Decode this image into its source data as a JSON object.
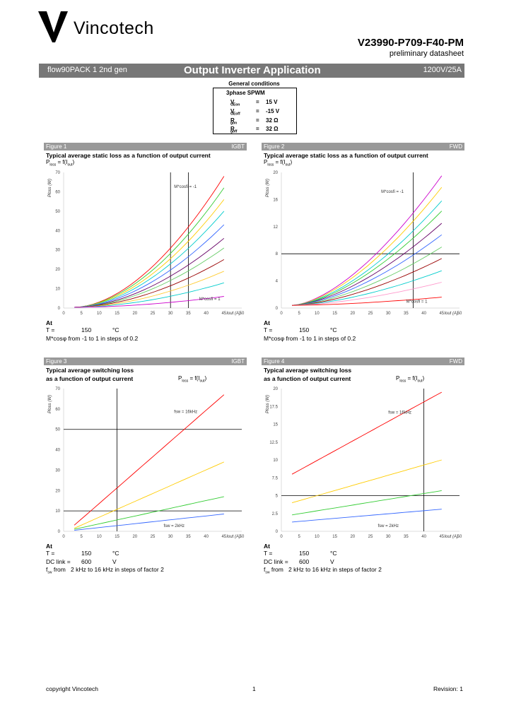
{
  "header": {
    "brand": "Vincotech",
    "part_number": "V23990-P709-F40-PM",
    "subtitle": "preliminary datasheet"
  },
  "band": {
    "left": "flow90PACK 1 2nd gen",
    "center": "Output Inverter Application",
    "right": "1200V/25A"
  },
  "general_conditions": {
    "title": "General conditions",
    "heading": "3phase SPWM",
    "rows": [
      {
        "sym": "V",
        "sub": "GEon",
        "eq": "=",
        "val": "15 V"
      },
      {
        "sym": "V",
        "sub": "GEoff",
        "eq": "=",
        "val": "-15 V"
      },
      {
        "sym": "R",
        "sub": "gon",
        "eq": "=",
        "val": "32 Ω"
      },
      {
        "sym": "R",
        "sub": "goff",
        "eq": "=",
        "val": "32 Ω"
      }
    ]
  },
  "figures": [
    {
      "label": "Figure 1",
      "tag": "IGBT",
      "title": "Typical average static loss as a function of output current",
      "title2": "",
      "formula": "P",
      "formula_sub": "loss",
      "formula_rest": " = f(I",
      "formula_sub2": "out",
      "formula_end": ")",
      "ylabel": "Ploss (W)",
      "xlabel": "Iout (A)",
      "annot_top": "M*cosfi = -1",
      "annot_bottom": "M*cosfi = 1",
      "cond_at": "At",
      "cond_t_label": "T =",
      "cond_t_val": "150",
      "cond_t_unit": "°C",
      "cond_note": "M*cosφ from -1 to 1 in steps of 0.2"
    },
    {
      "label": "Figure 2",
      "tag": "FWD",
      "title": "Typical average static loss as a function of output current",
      "title2": "",
      "formula": "P",
      "formula_sub": "loss",
      "formula_rest": " = f(I",
      "formula_sub2": "out",
      "formula_end": ")",
      "ylabel": "Ploss (W)",
      "xlabel": "Iout (A)",
      "annot_top": "M*cosfi = -1",
      "annot_bottom": "M*cosfi = 1",
      "cond_at": "At",
      "cond_t_label": "T =",
      "cond_t_val": "150",
      "cond_t_unit": "°C",
      "cond_note": "M*cosφ from -1 to 1 in steps of 0.2"
    },
    {
      "label": "Figure 3",
      "tag": "IGBT",
      "title": "Typical average switching loss",
      "title2": "as a function of output current",
      "formula": "P",
      "formula_sub": "loss",
      "formula_rest": " = f(I",
      "formula_sub2": "out",
      "formula_end": ")",
      "ylabel": "Ploss (W)",
      "xlabel": "Iout (A)",
      "annot_top": "fsw = 16kHz",
      "annot_bottom": "fsw = 2kHz",
      "cond_at": "At",
      "cond_t_label": "T =",
      "cond_t_val": "150",
      "cond_t_unit": "°C",
      "cond_dc_label": "DC link =",
      "cond_dc_val": "600",
      "cond_dc_unit": "V",
      "cond_f_label": "f",
      "cond_f_sub": "sw",
      "cond_f_rest": " from",
      "cond_f_val": "2 kHz to 16 kHz in steps of factor 2"
    },
    {
      "label": "Figure 4",
      "tag": "FWD",
      "title": "Typical average switching loss",
      "title2": "as a function of output current",
      "formula": "P",
      "formula_sub": "loss",
      "formula_rest": " = f(I",
      "formula_sub2": "out",
      "formula_end": ")",
      "ylabel": "Ploss (W)",
      "xlabel": "Iout (A)",
      "annot_top": "fsw = 16kHz",
      "annot_bottom": "fsw = 2kHz",
      "cond_at": "At",
      "cond_t_label": "T =",
      "cond_t_val": "150",
      "cond_t_unit": "°C",
      "cond_dc_label": "DC link =",
      "cond_dc_val": "600",
      "cond_dc_unit": "V",
      "cond_f_label": "f",
      "cond_f_sub": "sw",
      "cond_f_rest": " from",
      "cond_f_val": "2 kHz to 16 kHz in steps of factor 2"
    }
  ],
  "chart_data": [
    {
      "type": "line",
      "x_ticks": [
        0,
        5,
        10,
        15,
        20,
        25,
        30,
        35,
        40,
        45,
        50
      ],
      "y_ticks": [
        0,
        10,
        20,
        30,
        40,
        50,
        60,
        70
      ],
      "xlim": [
        0,
        50
      ],
      "ylim": [
        0,
        70
      ],
      "vlines": [
        30,
        35
      ],
      "hlines": [],
      "x_start": 3,
      "x_end": 45,
      "series": [
        {
          "color": "#ff0000",
          "end": 68
        },
        {
          "color": "#33cc33",
          "end": 62
        },
        {
          "color": "#ffcc00",
          "end": 56
        },
        {
          "color": "#00cccc",
          "end": 50
        },
        {
          "color": "#3366ff",
          "end": 43
        },
        {
          "color": "#660066",
          "end": 36
        },
        {
          "color": "#66cc66",
          "end": 31
        },
        {
          "color": "#990000",
          "end": 25
        },
        {
          "color": "#ffcc33",
          "end": 19
        },
        {
          "color": "#00cccc",
          "end": 13
        },
        {
          "color": "#cc00cc",
          "end": 6
        }
      ],
      "curve_power": 1.8
    },
    {
      "type": "line",
      "x_ticks": [
        0,
        5,
        10,
        15,
        20,
        25,
        30,
        35,
        40,
        45,
        50
      ],
      "y_ticks": [
        0,
        4,
        8,
        12,
        16,
        20
      ],
      "xlim": [
        0,
        50
      ],
      "ylim": [
        0,
        20
      ],
      "vlines": [
        37
      ],
      "hlines": [
        8
      ],
      "x_start": 3,
      "x_end": 45,
      "series": [
        {
          "color": "#cc00cc",
          "end": 19.5
        },
        {
          "color": "#ffcc00",
          "end": 17.8
        },
        {
          "color": "#00cccc",
          "end": 15.8
        },
        {
          "color": "#33cc33",
          "end": 14.3
        },
        {
          "color": "#660066",
          "end": 12.5
        },
        {
          "color": "#3366ff",
          "end": 10.8
        },
        {
          "color": "#66cc66",
          "end": 9.0
        },
        {
          "color": "#990000",
          "end": 7.3
        },
        {
          "color": "#00cccc",
          "end": 5.5
        },
        {
          "color": "#ff99cc",
          "end": 3.8
        },
        {
          "color": "#ff0000",
          "end": 1.6
        }
      ],
      "curve_power": 1.6
    },
    {
      "type": "line",
      "x_ticks": [
        0,
        5,
        10,
        15,
        20,
        25,
        30,
        35,
        40,
        45,
        50
      ],
      "y_ticks": [
        0,
        10,
        20,
        30,
        40,
        50,
        60,
        70
      ],
      "xlim": [
        0,
        50
      ],
      "ylim": [
        0,
        70
      ],
      "vlines": [
        15
      ],
      "hlines": [
        10,
        50
      ],
      "x_start": 3,
      "x_end": 45,
      "series": [
        {
          "color": "#ff0000",
          "y0": 3,
          "y1": 67
        },
        {
          "color": "#ffcc00",
          "y0": 1.5,
          "y1": 34
        },
        {
          "color": "#33cc33",
          "y0": 1,
          "y1": 17
        },
        {
          "color": "#3366ff",
          "y0": 0.5,
          "y1": 8.5
        }
      ],
      "curve_power": 1
    },
    {
      "type": "line",
      "x_ticks": [
        0,
        5,
        10,
        15,
        20,
        25,
        30,
        35,
        40,
        45,
        50
      ],
      "y_ticks": [
        0,
        2.5,
        5,
        7.5,
        10,
        12.5,
        15,
        17.5,
        20
      ],
      "xlim": [
        0,
        50
      ],
      "ylim": [
        0,
        20
      ],
      "vlines": [
        40
      ],
      "hlines": [
        5
      ],
      "x_start": 3,
      "x_end": 45,
      "series": [
        {
          "color": "#ff0000",
          "y0": 8,
          "y1": 19.5
        },
        {
          "color": "#ffcc00",
          "y0": 4,
          "y1": 10
        },
        {
          "color": "#33cc33",
          "y0": 2.3,
          "y1": 5.7
        },
        {
          "color": "#3366ff",
          "y0": 1.3,
          "y1": 3.1
        }
      ],
      "curve_power": 1
    }
  ],
  "footer": {
    "left": "copyright Vincotech",
    "center": "1",
    "right": "Revision: 1"
  }
}
